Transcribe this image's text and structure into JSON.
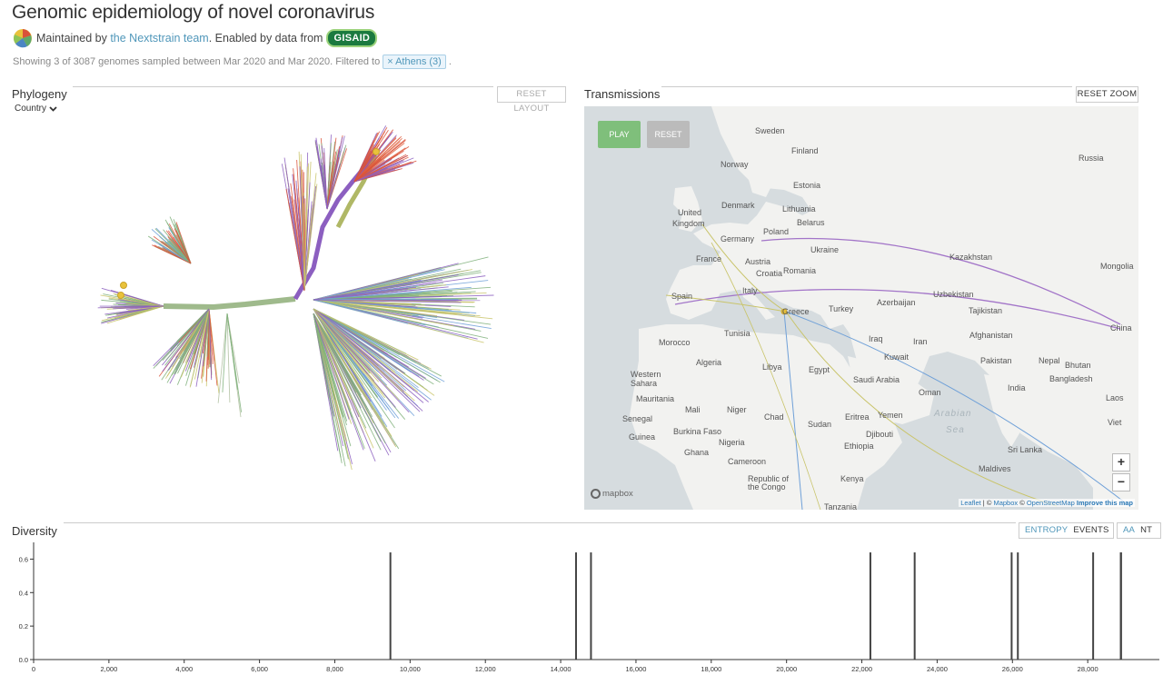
{
  "header": {
    "title": "Genomic epidemiology of novel coronavirus",
    "maintained_prefix": "Maintained by",
    "team_link": "the Nextstrain team",
    "enabled_text": ". Enabled by data from",
    "gisaid": "GISAID",
    "info_prefix": "Showing 3 of 3087 genomes sampled between Mar 2020 and Mar 2020. Filtered to",
    "filter_close": "×",
    "filter_value": "Athens (3)",
    "info_suffix": "."
  },
  "phylogeny": {
    "title": "Phylogeny",
    "reset_label": "RESET LAYOUT",
    "color_by": "Country"
  },
  "transmissions": {
    "title": "Transmissions",
    "reset_zoom": "RESET ZOOM",
    "play": "PLAY",
    "reset": "RESET",
    "zoom_in": "+",
    "zoom_out": "−",
    "mapbox": "mapbox",
    "attribution": {
      "leaflet": "Leaflet",
      "sep1": " | © ",
      "mapbox": "Mapbox",
      "sep2": " © ",
      "osm": "OpenStreetMap",
      "improve": "Improve this map"
    },
    "labels": [
      "Sweden",
      "Finland",
      "Norway",
      "Estonia",
      "Russia",
      "Denmark",
      "Lithuania",
      "United",
      "Kingdom",
      "Belarus",
      "Germany",
      "Poland",
      "Ukraine",
      "Kazakhstan",
      "France",
      "Austria",
      "Croatia",
      "Romania",
      "Mongolia",
      "Spain",
      "Italy",
      "Azerbaijan",
      "Uzbekistan",
      "Tajikistan",
      "Greece",
      "Turkey",
      "China",
      "Morocco",
      "Tunisia",
      "Iraq",
      "Iran",
      "Afghanistan",
      "Kuwait",
      "Western",
      "Sahara",
      "Algeria",
      "Libya",
      "Egypt",
      "Saudi Arabia",
      "Pakistan",
      "Nepal",
      "Bhutan",
      "Bangladesh",
      "Mauritania",
      "India",
      "Laos",
      "Oman",
      "Mali",
      "Niger",
      "Senegal",
      "Guinea",
      "Burkina Faso",
      "Chad",
      "Sudan",
      "Eritrea",
      "Yemen",
      "Viet",
      "Djibouti",
      "Ghana",
      "Nigeria",
      "Ethiopia",
      "Sri Lanka",
      "Cameroon",
      "Maldives",
      "Republic of",
      "the Congo",
      "Kenya",
      "Tanzania",
      "Arabian",
      "Sea"
    ],
    "colors": {
      "play": "#7fbf7b",
      "route_purple": "#a274c8",
      "route_yellow": "#c9c46a",
      "route_blue": "#6fa0d8"
    }
  },
  "diversity": {
    "title": "Diversity",
    "entropy": "ENTROPY",
    "events": "EVENTS",
    "aa": "AA",
    "nt": "NT"
  },
  "chart_data": {
    "type": "bar",
    "title": "",
    "xlabel": "",
    "ylabel": "",
    "xlim": [
      0,
      29903
    ],
    "ylim": [
      0,
      0.7
    ],
    "x_ticks": [
      "0",
      "2,000",
      "4,000",
      "6,000",
      "8,000",
      "10,000",
      "12,000",
      "14,000",
      "16,000",
      "18,000",
      "20,000",
      "22,000",
      "24,000",
      "26,000",
      "28,000"
    ],
    "y_ticks": [
      "0.0",
      "0.2",
      "0.4",
      "0.6"
    ],
    "x": [
      9477,
      14408,
      14805,
      22227,
      23403,
      25979,
      26144,
      28144,
      28881,
      28882,
      28883
    ],
    "values": [
      0.64,
      0.64,
      0.64,
      0.64,
      0.64,
      0.64,
      0.64,
      0.64,
      0.64,
      0.64,
      0.64
    ],
    "grid": false
  }
}
